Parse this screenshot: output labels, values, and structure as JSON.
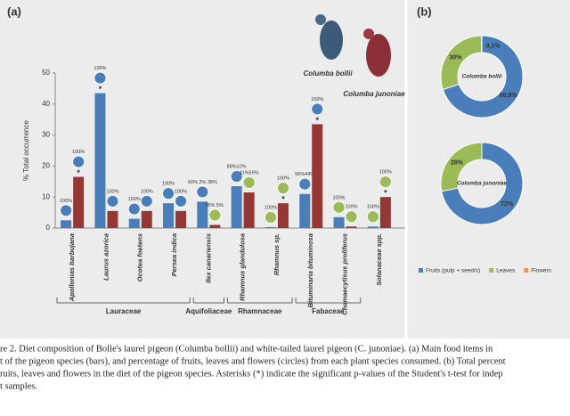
{
  "chart_data": [
    {
      "type": "bar",
      "panel": "(a)",
      "y_label": "% Total occurrence",
      "categories": [
        "Apollonias barbujana",
        "Laurus azorica",
        "Ocotea foetens",
        "Persea indica",
        "Ilex canariensis",
        "Rhamnus glandulosa",
        "Rhamnus sp.",
        "Bituminaria bituminosa",
        "Chamaecytisus proliferus",
        "Solanaceae spp."
      ],
      "groups": [
        {
          "label": "Lauraceae",
          "categories": [
            "Apollonias barbujana",
            "Laurus azorica",
            "Ocotea foetens",
            "Persea indica"
          ]
        },
        {
          "label": "Aquifoliaceae",
          "categories": [
            "Ilex canariensis"
          ]
        },
        {
          "label": "Rhamnaceae",
          "categories": [
            "Rhamnus glandulosa",
            "Rhamnus sp."
          ]
        },
        {
          "label": "Fabaceae",
          "categories": [
            "Bituminaria bituminosa",
            "Chamaecytisus proliferus"
          ]
        }
      ],
      "series": [
        {
          "name": "Columba bollii",
          "color": "#4a7ebb",
          "values": [
            2.5,
            43.5,
            3,
            8,
            8.5,
            13.5,
            0.3,
            11,
            3.5,
            0.5
          ],
          "circle_labels": [
            [
              "100%"
            ],
            [
              "100%"
            ],
            [
              "100%"
            ],
            [
              "100%"
            ],
            [
              "60%",
              "2%",
              "38%"
            ],
            [
              "88%",
              "12%"
            ],
            [
              "100%"
            ],
            [
              "56%",
              "44%"
            ],
            [
              "100%"
            ],
            [
              "100%"
            ]
          ],
          "circle_colors": [
            "#4a7ebb",
            "#4a7ebb",
            "#4a7ebb",
            "#4a7ebb",
            "#4a7ebb",
            "#4a7ebb",
            "#9bbb59",
            "#4a7ebb",
            "#9bbb59",
            "#9bbb59"
          ],
          "asterisks": [
            null,
            "*",
            null,
            null,
            null,
            null,
            null,
            null,
            null,
            null
          ]
        },
        {
          "name": "Columba junoniae",
          "color": "#953735",
          "values": [
            16.5,
            5.5,
            5.5,
            5.5,
            1,
            11.5,
            8,
            33.5,
            0.5,
            10
          ],
          "circle_labels": [
            [
              "100%"
            ],
            [
              "100%"
            ],
            [
              "100%"
            ],
            [
              "100%"
            ],
            [
              "95%",
              "5%"
            ],
            [
              "41%",
              "59%"
            ],
            [
              "100%"
            ],
            [
              "100%"
            ],
            [
              "100%"
            ],
            [
              "100%"
            ]
          ],
          "circle_colors": [
            "#4a7ebb",
            "#4a7ebb",
            "#4a7ebb",
            "#4a7ebb",
            "#9bbb59",
            "#9bbb59",
            "#9bbb59",
            "#4a7ebb",
            "#9bbb59",
            "#9bbb59"
          ],
          "asterisks": [
            "*",
            null,
            null,
            null,
            null,
            null,
            "*",
            "*",
            null,
            "*"
          ]
        }
      ],
      "ylim": [
        0,
        50
      ],
      "yticks": [
        0,
        10,
        20,
        30,
        40,
        50
      ]
    },
    {
      "type": "donut",
      "panel": "(b)",
      "legend_categories": [
        "Fruits (pulp + seed/s)",
        "Leaves",
        "Flowers"
      ],
      "colors": [
        "#4a7ebb",
        "#9bbb59",
        "#f79646"
      ],
      "pies": [
        {
          "name": "Columba bollii",
          "values": [
            69.9,
            30,
            0.1
          ],
          "value_labels": [
            "69,9%",
            "30%",
            "0,1%"
          ]
        },
        {
          "name": "Columba junoniae",
          "values": [
            72,
            28
          ],
          "value_labels": [
            "72%",
            "28%"
          ]
        }
      ]
    }
  ],
  "caption": [
    "re 2. Diet composition of Bolle's laurel pigeon (Columba bollii) and white-tailed laurel pigeon (C. junoniae). (a) Main food items in",
    "t of the pigeon species (bars), and percentage of fruits, leaves and flowers (circles) from each plant species consumed. (b) Total percent",
    "ruits, leaves and flowers in the diet of the pigeon species. Asterisks (*) indicate the significant p-values of the Student's t-test for indep",
    "t samples."
  ]
}
